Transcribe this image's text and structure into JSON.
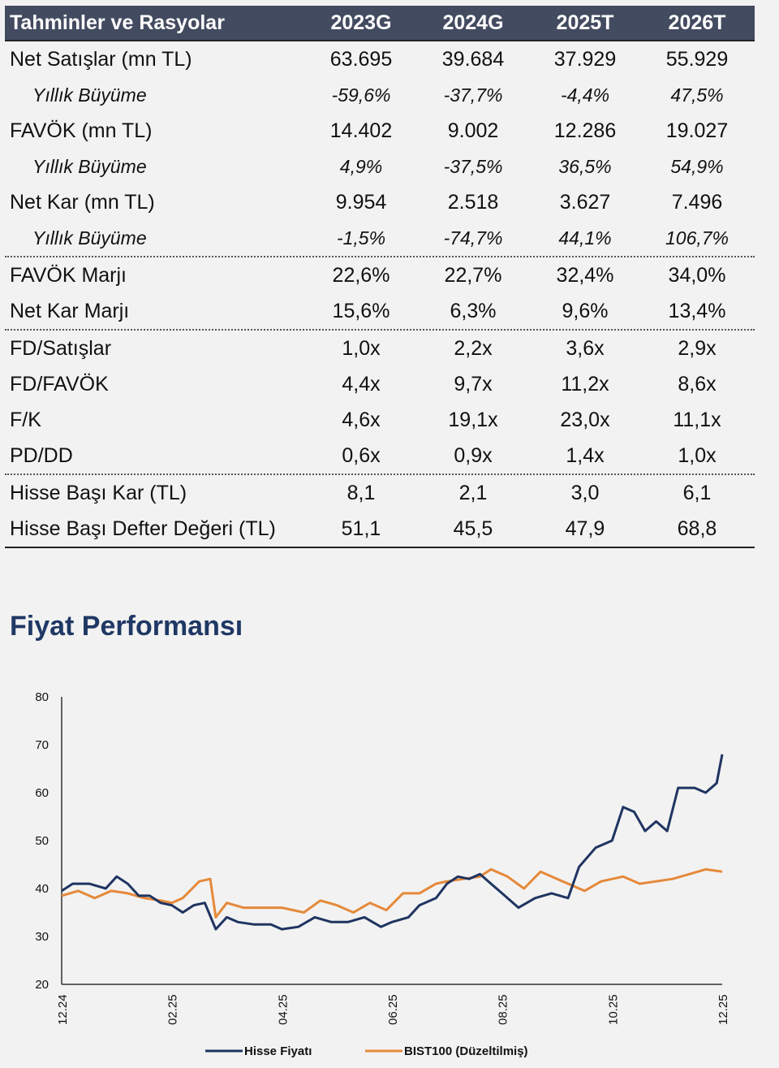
{
  "table": {
    "title": "Tahminler ve Rasyolar",
    "columns": [
      "2023G",
      "2024G",
      "2025T",
      "2026T"
    ],
    "rows": [
      {
        "label": "Net Satışlar (mn TL)",
        "values": [
          "63.695",
          "39.684",
          "37.929",
          "55.929"
        ]
      },
      {
        "label": "Yıllık Büyüme",
        "values": [
          "-59,6%",
          "-37,7%",
          "-4,4%",
          "47,5%"
        ]
      },
      {
        "label": "FAVÖK (mn TL)",
        "values": [
          "14.402",
          "9.002",
          "12.286",
          "19.027"
        ]
      },
      {
        "label": "Yıllık Büyüme",
        "values": [
          "4,9%",
          "-37,5%",
          "36,5%",
          "54,9%"
        ]
      },
      {
        "label": "Net Kar (mn TL)",
        "values": [
          "9.954",
          "2.518",
          "3.627",
          "7.496"
        ]
      },
      {
        "label": "Yıllık Büyüme",
        "values": [
          "-1,5%",
          "-74,7%",
          "44,1%",
          "106,7%"
        ]
      },
      {
        "label": "FAVÖK Marjı",
        "values": [
          "22,6%",
          "22,7%",
          "32,4%",
          "34,0%"
        ]
      },
      {
        "label": "Net Kar Marjı",
        "values": [
          "15,6%",
          "6,3%",
          "9,6%",
          "13,4%"
        ]
      },
      {
        "label": "FD/Satışlar",
        "values": [
          "1,0x",
          "2,2x",
          "3,6x",
          "2,9x"
        ]
      },
      {
        "label": "FD/FAVÖK",
        "values": [
          "4,4x",
          "9,7x",
          "11,2x",
          "8,6x"
        ]
      },
      {
        "label": "F/K",
        "values": [
          "4,6x",
          "19,1x",
          "23,0x",
          "11,1x"
        ]
      },
      {
        "label": "PD/DD",
        "values": [
          "0,6x",
          "0,9x",
          "1,4x",
          "1,0x"
        ]
      },
      {
        "label": "Hisse Başı Kar (TL)",
        "values": [
          "8,1",
          "2,1",
          "3,0",
          "6,1"
        ]
      },
      {
        "label": "Hisse Başı Defter Değeri (TL)",
        "values": [
          "51,1",
          "45,5",
          "47,9",
          "68,8"
        ]
      }
    ]
  },
  "section_title": "Fiyat Performansı",
  "chart_data": {
    "type": "line",
    "title": "Fiyat Performansı",
    "ylim": [
      20,
      80
    ],
    "yticks": [
      "20",
      "30",
      "40",
      "50",
      "60",
      "70",
      "80"
    ],
    "xticks": [
      "12.24",
      "02.25",
      "04.25",
      "06.25",
      "08.25",
      "10.25",
      "12.25"
    ],
    "xlim_months": [
      0,
      12
    ],
    "legend_position": "bottom",
    "series": [
      {
        "name": "Hisse Fiyatı",
        "color": "#1f3461",
        "x": [
          0,
          0.2,
          0.5,
          0.8,
          1.0,
          1.2,
          1.4,
          1.6,
          1.8,
          2.0,
          2.2,
          2.4,
          2.6,
          2.8,
          3.0,
          3.2,
          3.5,
          3.8,
          4.0,
          4.3,
          4.6,
          4.9,
          5.2,
          5.5,
          5.8,
          6.0,
          6.3,
          6.5,
          6.8,
          7.0,
          7.2,
          7.4,
          7.6,
          7.8,
          8.0,
          8.3,
          8.6,
          8.9,
          9.2,
          9.4,
          9.7,
          10.0,
          10.2,
          10.4,
          10.6,
          10.8,
          11.0,
          11.2,
          11.5,
          11.7,
          11.9,
          12.0
        ],
        "y": [
          39.5,
          41,
          41,
          40,
          42.5,
          41,
          38.5,
          38.5,
          37,
          36.5,
          35,
          36.5,
          37,
          31.5,
          34,
          33,
          32.5,
          32.5,
          31.5,
          32,
          34,
          33,
          33,
          34,
          32,
          33,
          34,
          36.5,
          38,
          41,
          42.5,
          42,
          43,
          41,
          39,
          36,
          38,
          39,
          38,
          44.5,
          48.5,
          50,
          57,
          56,
          52,
          54,
          52,
          61,
          61,
          60,
          62,
          68
        ]
      },
      {
        "name": "BIST100 (Düzeltilmiş)",
        "color": "#e5893a",
        "x": [
          0,
          0.3,
          0.6,
          0.9,
          1.2,
          1.5,
          1.8,
          2.0,
          2.2,
          2.5,
          2.7,
          2.8,
          3.0,
          3.3,
          3.6,
          4.0,
          4.4,
          4.7,
          5.0,
          5.3,
          5.6,
          5.9,
          6.2,
          6.5,
          6.8,
          7.0,
          7.3,
          7.6,
          7.8,
          8.1,
          8.4,
          8.7,
          9.0,
          9.2,
          9.5,
          9.8,
          10.2,
          10.5,
          10.8,
          11.1,
          11.4,
          11.7,
          12.0
        ],
        "y": [
          38.5,
          39.5,
          38,
          39.5,
          39,
          38,
          37.5,
          37,
          38,
          41.5,
          42,
          34,
          37,
          36,
          36,
          36,
          35,
          37.5,
          36.5,
          35,
          37,
          35.5,
          39,
          39,
          41,
          41.5,
          42,
          42.5,
          44,
          42.5,
          40,
          43.5,
          42,
          41,
          39.5,
          41.5,
          42.5,
          41,
          41.5,
          42,
          43,
          44,
          43.5
        ]
      }
    ]
  }
}
